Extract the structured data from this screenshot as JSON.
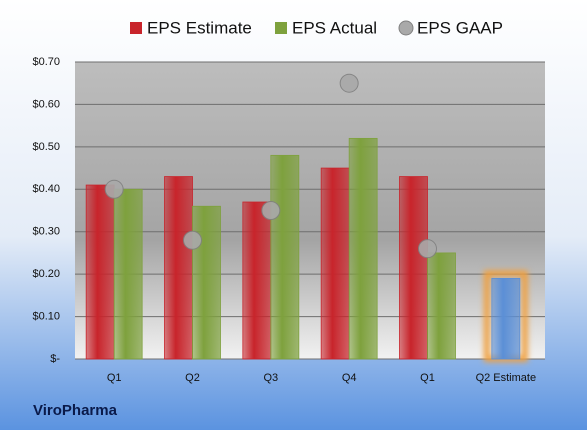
{
  "chart_data": {
    "type": "bar",
    "brand": "ViroPharma",
    "categories": [
      "Q1",
      "Q2",
      "Q3",
      "Q4",
      "Q1",
      "Q2 Estimate"
    ],
    "series": [
      {
        "name": "EPS Estimate",
        "color": "#c8242b",
        "forecast_color": "#5b8fd6",
        "values": [
          0.41,
          0.43,
          0.37,
          0.45,
          0.43,
          0.19
        ]
      },
      {
        "name": "EPS Actual",
        "color": "#7ea13d",
        "values": [
          0.4,
          0.36,
          0.48,
          0.52,
          0.25,
          null
        ]
      },
      {
        "name": "EPS GAAP",
        "type": "scatter",
        "color": "#a9a9a9",
        "values": [
          0.4,
          0.28,
          0.35,
          0.65,
          0.26,
          null
        ]
      }
    ],
    "ylim": [
      0,
      0.7
    ],
    "yticks": [
      {
        "value": 0,
        "label": "$-"
      },
      {
        "value": 0.1,
        "label": "$0.10"
      },
      {
        "value": 0.2,
        "label": "$0.20"
      },
      {
        "value": 0.3,
        "label": "$0.30"
      },
      {
        "value": 0.4,
        "label": "$0.40"
      },
      {
        "value": 0.5,
        "label": "$0.50"
      },
      {
        "value": 0.6,
        "label": "$0.60"
      },
      {
        "value": 0.7,
        "label": "$0.70"
      }
    ],
    "grid": true
  }
}
